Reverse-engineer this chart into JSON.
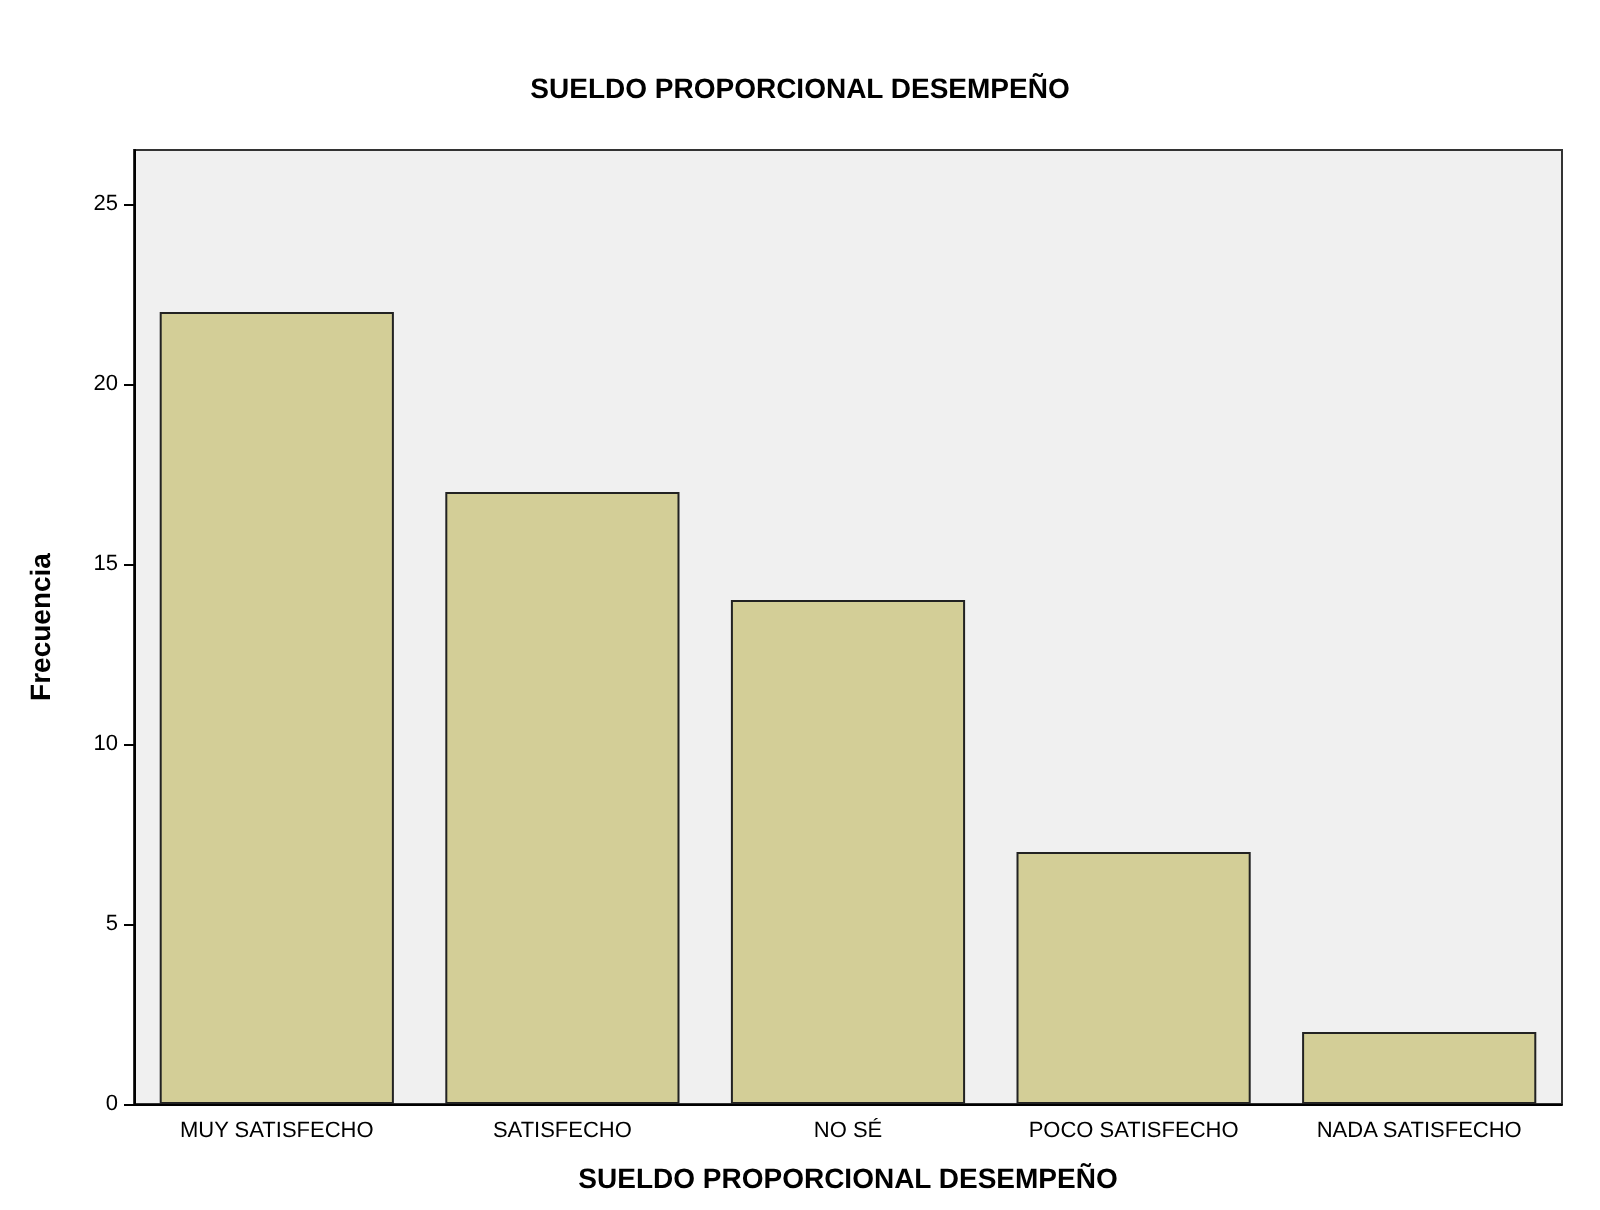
{
  "chart_data": {
    "type": "bar",
    "title": "SUELDO PROPORCIONAL DESEMPEÑO",
    "xlabel": "SUELDO PROPORCIONAL DESEMPEÑO",
    "ylabel": "Frecuencia",
    "categories": [
      "MUY SATISFECHO",
      "SATISFECHO",
      "NO SÉ",
      "POCO SATISFECHO",
      "NADA SATISFECHO"
    ],
    "values": [
      22,
      17,
      14,
      7,
      2
    ],
    "color": "#d3ce97",
    "ylim": [
      0,
      26.5
    ],
    "yticks": [
      0,
      5,
      10,
      15,
      20,
      25
    ],
    "grid": false
  }
}
